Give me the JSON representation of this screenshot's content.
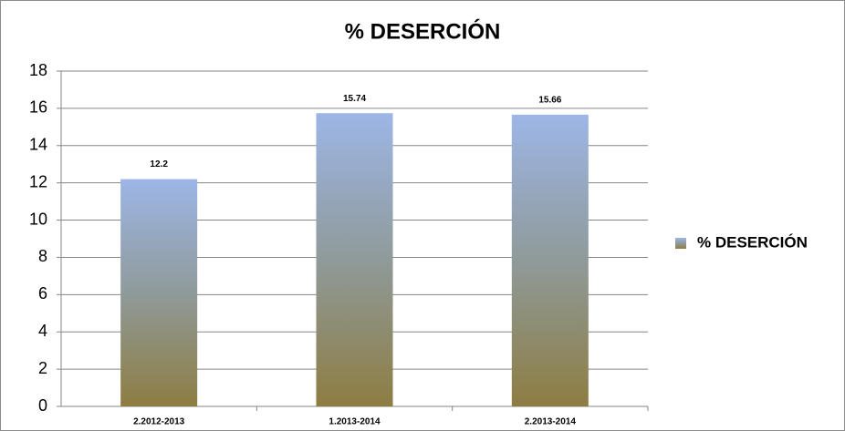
{
  "chart_data": {
    "type": "bar",
    "title": "% DESERCIÓN",
    "categories": [
      "2.2012-2013",
      "1.2013-2014",
      "2.2013-2014"
    ],
    "series": [
      {
        "name": "% DESERCIÓN",
        "values": [
          12.2,
          15.74,
          15.66
        ]
      }
    ],
    "ylim": [
      0,
      18
    ],
    "yticks": [
      0,
      2,
      4,
      6,
      8,
      10,
      12,
      14,
      16,
      18
    ],
    "grid": true,
    "legend": "right"
  }
}
